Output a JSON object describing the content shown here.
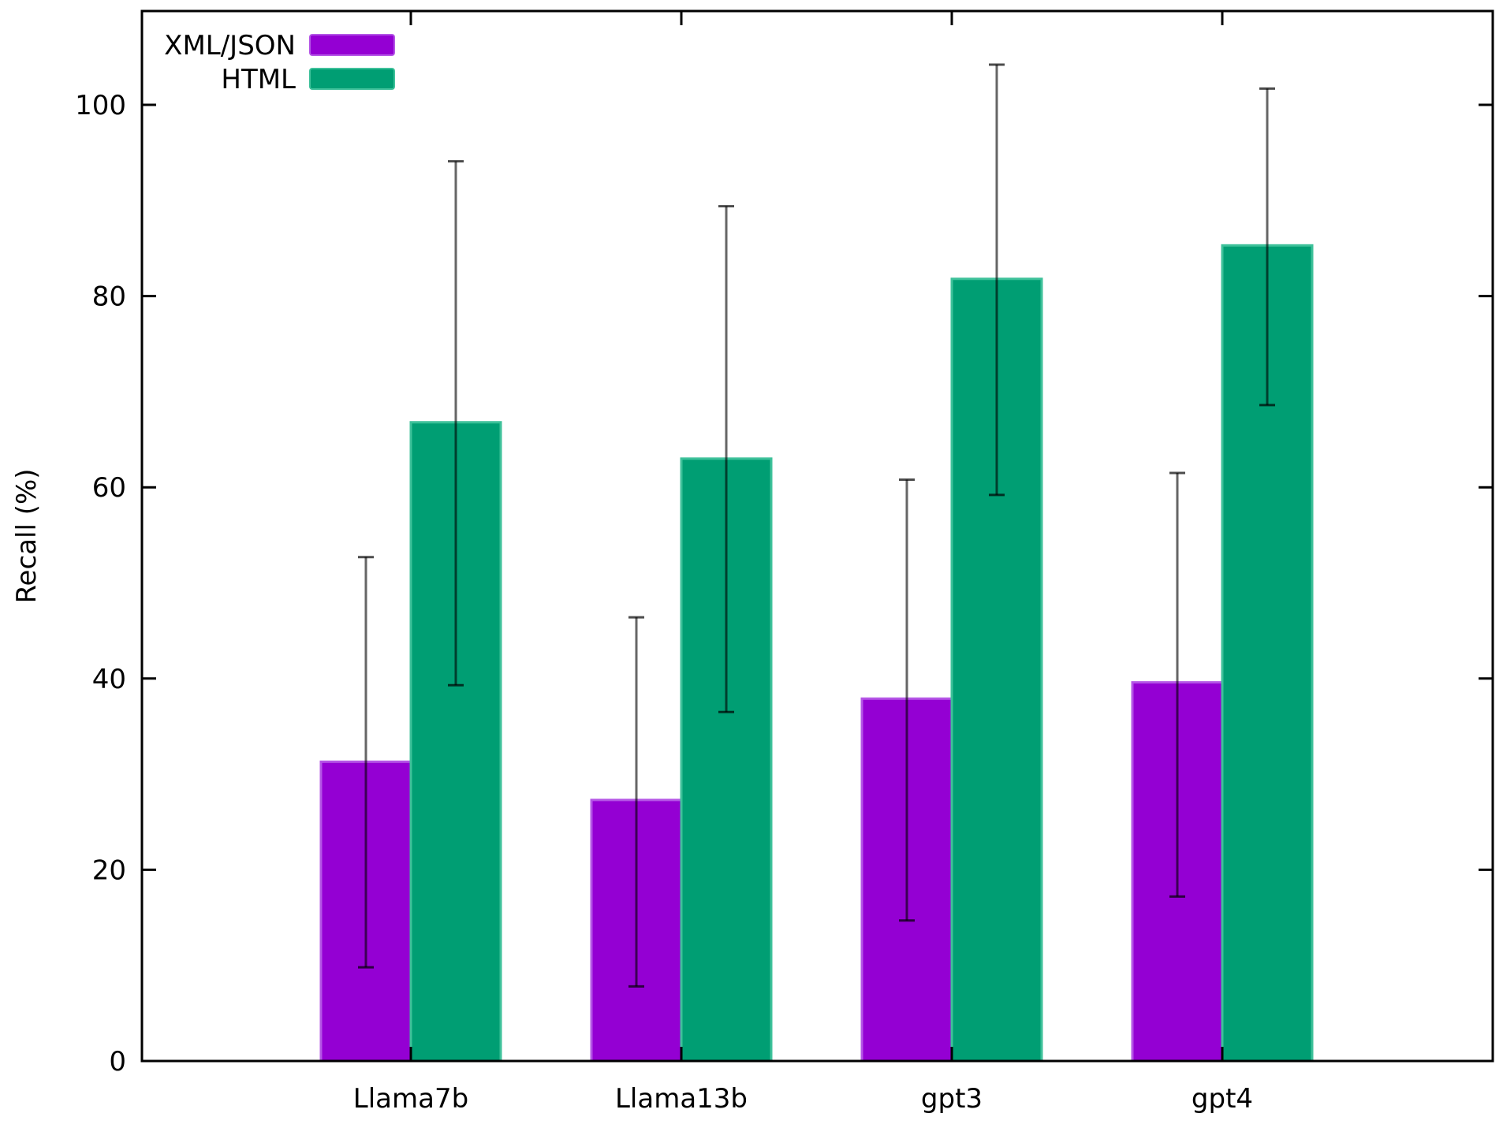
{
  "chart_data": {
    "type": "bar",
    "title": "",
    "xlabel": "",
    "ylabel": "Recall (%)",
    "ylim": [
      0,
      110
    ],
    "yticks": [
      0,
      20,
      40,
      60,
      80,
      100
    ],
    "ytick_labels": [
      "0",
      "20",
      "40",
      "60",
      "80",
      "100"
    ],
    "categories": [
      "Llama7b",
      "Llama13b",
      "gpt3",
      "gpt4"
    ],
    "series": [
      {
        "name": "XML/JSON",
        "color": "#9400d3",
        "values": [
          31.3,
          27.3,
          37.9,
          39.6
        ],
        "error_low": [
          9.8,
          7.8,
          14.7,
          17.2
        ],
        "error_high": [
          52.7,
          46.4,
          60.8,
          61.5
        ]
      },
      {
        "name": "HTML",
        "color": "#009e73",
        "values": [
          66.8,
          63.0,
          81.8,
          85.3
        ],
        "error_low": [
          39.3,
          36.5,
          59.2,
          68.6
        ],
        "error_high": [
          94.1,
          89.4,
          104.2,
          101.7
        ]
      }
    ],
    "legend_position": "top-left",
    "grid": false
  }
}
